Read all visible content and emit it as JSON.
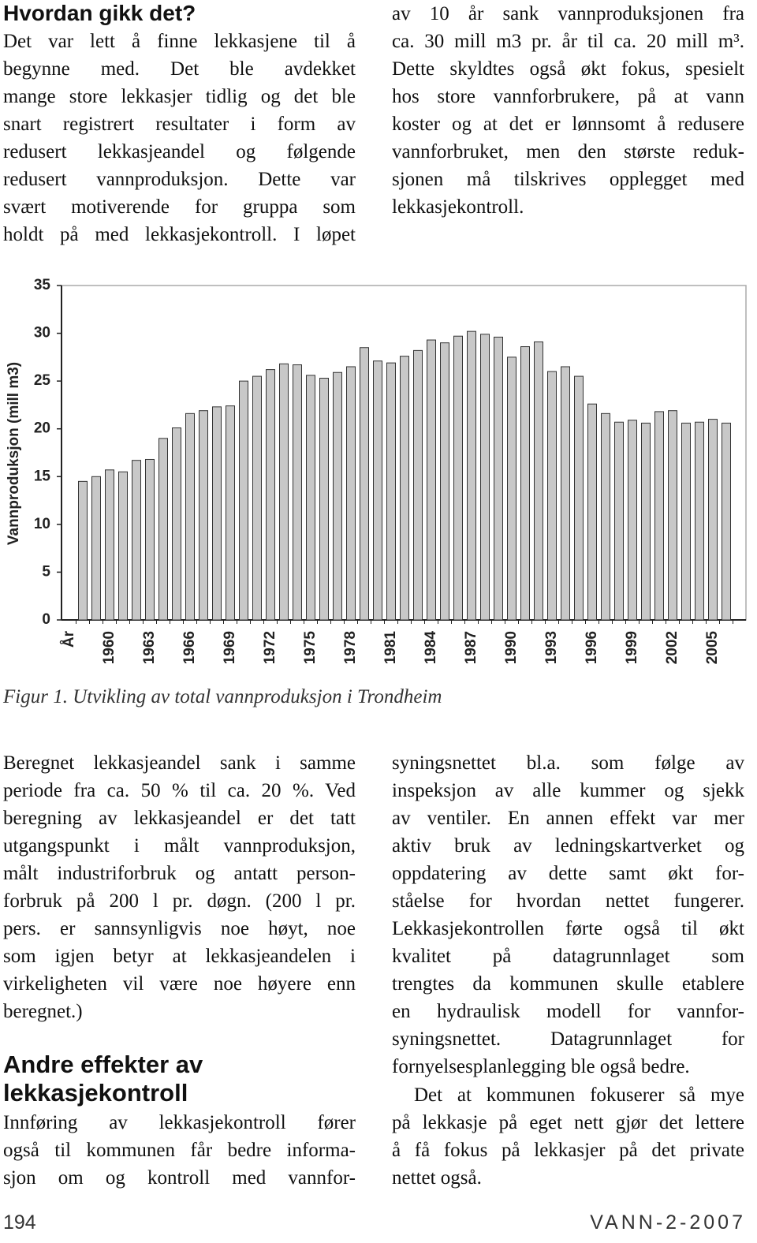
{
  "left_top": {
    "title": "Hvordan gikk det?",
    "lines": [
      "Det var lett å finne lekkasjene til å",
      "begynne med. Det ble avdekket",
      "mange store lekkasjer tidlig og det ble",
      "snart registrert resultater i form av",
      "redusert lekkasjeandel og følgende",
      "redusert vannproduksjon. Dette var",
      "svært motiverende for gruppa som",
      "holdt på med lekkasjekontroll. I løpet"
    ]
  },
  "right_top": {
    "lines": [
      "av 10 år sank vannproduksjonen fra",
      "ca. 30 mill m3 pr. år til ca. 20 mill m³.",
      "Dette skyldtes også økt fokus, spesielt",
      "hos store vannforbrukere, på at vann",
      "koster og at det er lønnsomt å redusere",
      "vannforbruket, men den største reduk-",
      "sjonen må tilskrives opplegget med",
      "lekkasjekontroll."
    ]
  },
  "chart_data": {
    "type": "bar",
    "ylabel": "Vannproduksjon (mill m3)",
    "categories": [
      "År",
      null,
      null,
      "1960",
      null,
      null,
      "1963",
      null,
      null,
      "1966",
      null,
      null,
      "1969",
      null,
      null,
      "1972",
      null,
      null,
      "1975",
      null,
      null,
      "1978",
      null,
      null,
      "1981",
      null,
      null,
      "1984",
      null,
      null,
      "1987",
      null,
      null,
      "1990",
      null,
      null,
      "1993",
      null,
      null,
      "1996",
      null,
      null,
      "1999",
      null,
      null,
      "2002",
      null,
      null,
      "2005",
      null
    ],
    "values": [
      null,
      14.5,
      15,
      15.7,
      15.5,
      16.7,
      16.8,
      19,
      20.1,
      21.6,
      21.9,
      22.3,
      22.4,
      25,
      25.5,
      26.2,
      26.8,
      26.7,
      25.6,
      25.3,
      25.9,
      26.5,
      28.5,
      27.1,
      26.9,
      27.6,
      28.2,
      29.3,
      29,
      29.7,
      30.2,
      29.9,
      29.6,
      27.5,
      28.6,
      29.1,
      26,
      26.5,
      25.5,
      22.6,
      21.6,
      20.7,
      20.9,
      20.6,
      21.8,
      21.9,
      20.6,
      20.7,
      21,
      20.6
    ],
    "color": "#c8c8c8",
    "ylim": [
      0,
      35
    ],
    "yticks": [
      0,
      5,
      10,
      15,
      20,
      25,
      30,
      35
    ],
    "grid": false
  },
  "caption": "Figur 1. Utvikling av total vannproduksjon i Trondheim",
  "left_bottom": {
    "lines": [
      "Beregnet lekkasjeandel sank i samme",
      "periode fra ca. 50 % til ca. 20 %. Ved",
      "beregning av lekkasjeandel er det tatt",
      "utgangspunkt i målt vannproduksjon,",
      "målt industriforbruk og antatt person-",
      "forbruk på 200 l pr. døgn. (200 l pr.",
      "pers. er sannsynligvis noe høyt, noe",
      "som igjen betyr at lekkasjeandelen i",
      "virkeligheten vil være noe høyere enn",
      "beregnet.)"
    ],
    "heading": [
      "Andre effekter av",
      "lekkasjekontroll"
    ],
    "lines2": [
      "Innføring av lekkasjekontroll fører",
      "også til kommunen får bedre informa-",
      "sjon om og kontroll med vannfor-"
    ]
  },
  "right_bottom": {
    "lines": [
      "syningsnettet bl.a. som følge av",
      "inspeksjon av alle kummer og sjekk",
      "av ventiler. En annen effekt var mer",
      "aktiv bruk av ledningskartverket og",
      "oppdatering av dette samt økt for-",
      "ståelse for hvordan nettet fungerer.",
      "Lekkasjekontrollen førte også til økt",
      "kvalitet på datagrunnlaget som",
      "trengtes da kommunen skulle etablere",
      "en hydraulisk modell for vannfor-",
      "syningsnettet. Datagrunnlaget for",
      "fornyelsesplanlegging ble også bedre."
    ],
    "lines2": [
      "Det at kommunen fokuserer så mye",
      "på lekkasje på eget nett gjør det lettere",
      "å få fokus på lekkasjer på det private",
      "nettet også."
    ]
  },
  "footer": {
    "page": "194",
    "journal": "VANN-2-2007"
  }
}
